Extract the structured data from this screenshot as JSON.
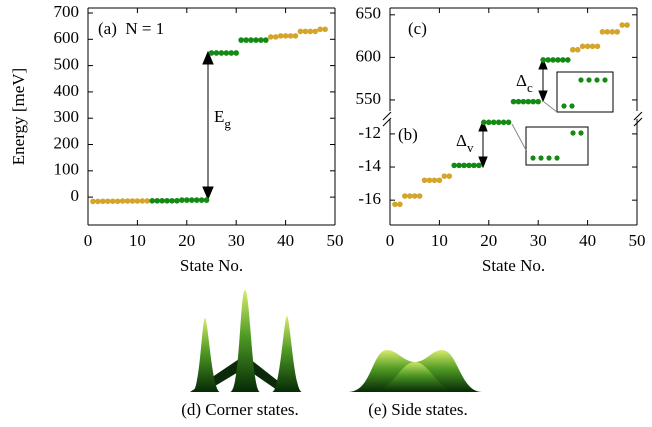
{
  "chart_data": [
    {
      "type": "scatter",
      "title": "(a)  N = 1",
      "x_label": "State No.",
      "y_label": "Energy [meV]",
      "xlim": [
        0,
        50
      ],
      "xticks": [
        0,
        10,
        20,
        30,
        40,
        50
      ],
      "ylim": [
        -106,
        719
      ],
      "yticks": [
        0,
        100,
        200,
        300,
        400,
        500,
        600,
        700
      ],
      "series": [
        {
          "color": "#d4a52a",
          "x": [
            1,
            2,
            3,
            4,
            5,
            6,
            7,
            8,
            9,
            10,
            11,
            12,
            37,
            38,
            39,
            40,
            41,
            42,
            43,
            44,
            45,
            46,
            47,
            48
          ],
          "values": [
            -16.25,
            -16.25,
            -15.75,
            -15.75,
            -15.75,
            -15.75,
            -14.8,
            -14.8,
            -14.8,
            -14.8,
            -14.55,
            -14.55,
            609,
            609,
            613,
            613,
            613,
            613,
            630,
            630,
            630,
            630,
            638,
            638
          ]
        },
        {
          "color": "#138a13",
          "x": [
            13,
            14,
            15,
            16,
            17,
            18,
            19,
            20,
            21,
            22,
            23,
            24,
            25,
            26,
            27,
            28,
            29,
            30,
            31,
            32,
            33,
            34,
            35,
            36
          ],
          "values": [
            -13.9,
            -13.9,
            -13.9,
            -13.9,
            -13.9,
            -13.9,
            -11.3,
            -11.3,
            -11.3,
            -11.3,
            -11.3,
            -11.3,
            548,
            548,
            548,
            548,
            548,
            548,
            597,
            597,
            597,
            597,
            597,
            597
          ]
        }
      ],
      "annotations": [
        {
          "text": "E",
          "subscript": "g"
        }
      ]
    },
    {
      "type": "scatter",
      "title": "(c)",
      "xlim": [
        0,
        50
      ],
      "ylim": [
        537,
        658
      ],
      "yticks": [
        550,
        600,
        650
      ],
      "series": [
        {
          "color": "#d4a52a",
          "x": [
            37,
            38,
            39,
            40,
            41,
            42,
            43,
            44,
            45,
            46,
            47,
            48
          ],
          "values": [
            609,
            609,
            613,
            613,
            613,
            613,
            630,
            630,
            630,
            630,
            638,
            638
          ]
        },
        {
          "color": "#138a13",
          "x": [
            25,
            26,
            27,
            28,
            29,
            30,
            31,
            32,
            33,
            34,
            35,
            36
          ],
          "values": [
            548,
            548,
            548,
            548,
            548,
            548,
            597,
            597,
            597,
            597,
            597,
            597
          ]
        }
      ],
      "annotations": [
        {
          "text": "Δ",
          "subscript": "c"
        }
      ]
    },
    {
      "type": "scatter",
      "title": "(b)",
      "x_label": "State No.",
      "xlim": [
        0,
        50
      ],
      "xticks": [
        0,
        10,
        20,
        30,
        40,
        50
      ],
      "ylim": [
        -17.5,
        -11.1
      ],
      "yticks": [
        -16,
        -14,
        -12
      ],
      "series": [
        {
          "color": "#d4a52a",
          "x": [
            1,
            2,
            3,
            4,
            5,
            6,
            7,
            8,
            9,
            10,
            11,
            12
          ],
          "values": [
            -16.25,
            -16.25,
            -15.75,
            -15.75,
            -15.75,
            -15.75,
            -14.8,
            -14.8,
            -14.8,
            -14.8,
            -14.55,
            -14.55
          ]
        },
        {
          "color": "#138a13",
          "x": [
            13,
            14,
            15,
            16,
            17,
            18,
            19,
            20,
            21,
            22,
            23,
            24
          ],
          "values": [
            -13.9,
            -13.9,
            -13.9,
            -13.9,
            -13.9,
            -13.9,
            -11.3,
            -11.3,
            -11.3,
            -11.3,
            -11.3,
            -11.3
          ]
        }
      ],
      "annotations": [
        {
          "text": "Δ",
          "subscript": "v"
        }
      ]
    }
  ],
  "figures": [
    {
      "caption": "(d) Corner states."
    },
    {
      "caption": "(e) Side states."
    }
  ]
}
